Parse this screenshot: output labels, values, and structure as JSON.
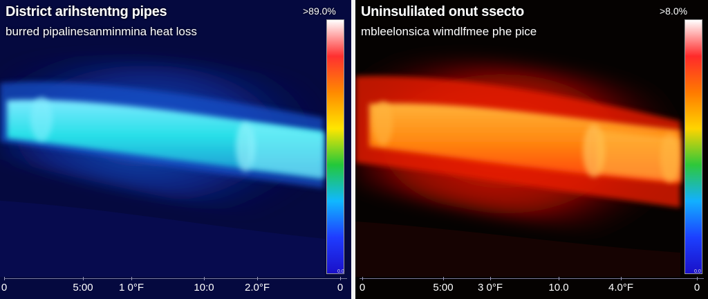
{
  "left_panel": {
    "title": "District arihstentng pipes",
    "subtitle": "burred pipalinesanminmina heat loss",
    "range_label": ">89.0%",
    "scale_min_label": "0.0",
    "scale_colors": [
      "#ffffff",
      "#ff3030",
      "#ff8a00",
      "#ffe600",
      "#23c83a",
      "#10b8ff",
      "#1f3cff",
      "#1a10c8"
    ],
    "axis_ticks": [
      "0",
      "5:00",
      "1 0°F",
      "10:0",
      "2.0°F",
      "0"
    ],
    "scene_tone": "cold-cyan"
  },
  "right_panel": {
    "title": "Uninsulilated onut ssecto",
    "subtitle": "mbleelonsica wimdlfmee phe pice",
    "range_label": ">8.0%",
    "scale_min_label": "0.0",
    "scale_colors": [
      "#ffffff",
      "#ff2a2a",
      "#ff7a00",
      "#ffd400",
      "#2ec83a",
      "#12b0ff",
      "#1c40ff",
      "#1a10c8"
    ],
    "axis_ticks": [
      "0",
      "5:00",
      "3 0°F",
      "10.0",
      "4.0°F",
      "0"
    ],
    "scene_tone": "hot-red"
  }
}
